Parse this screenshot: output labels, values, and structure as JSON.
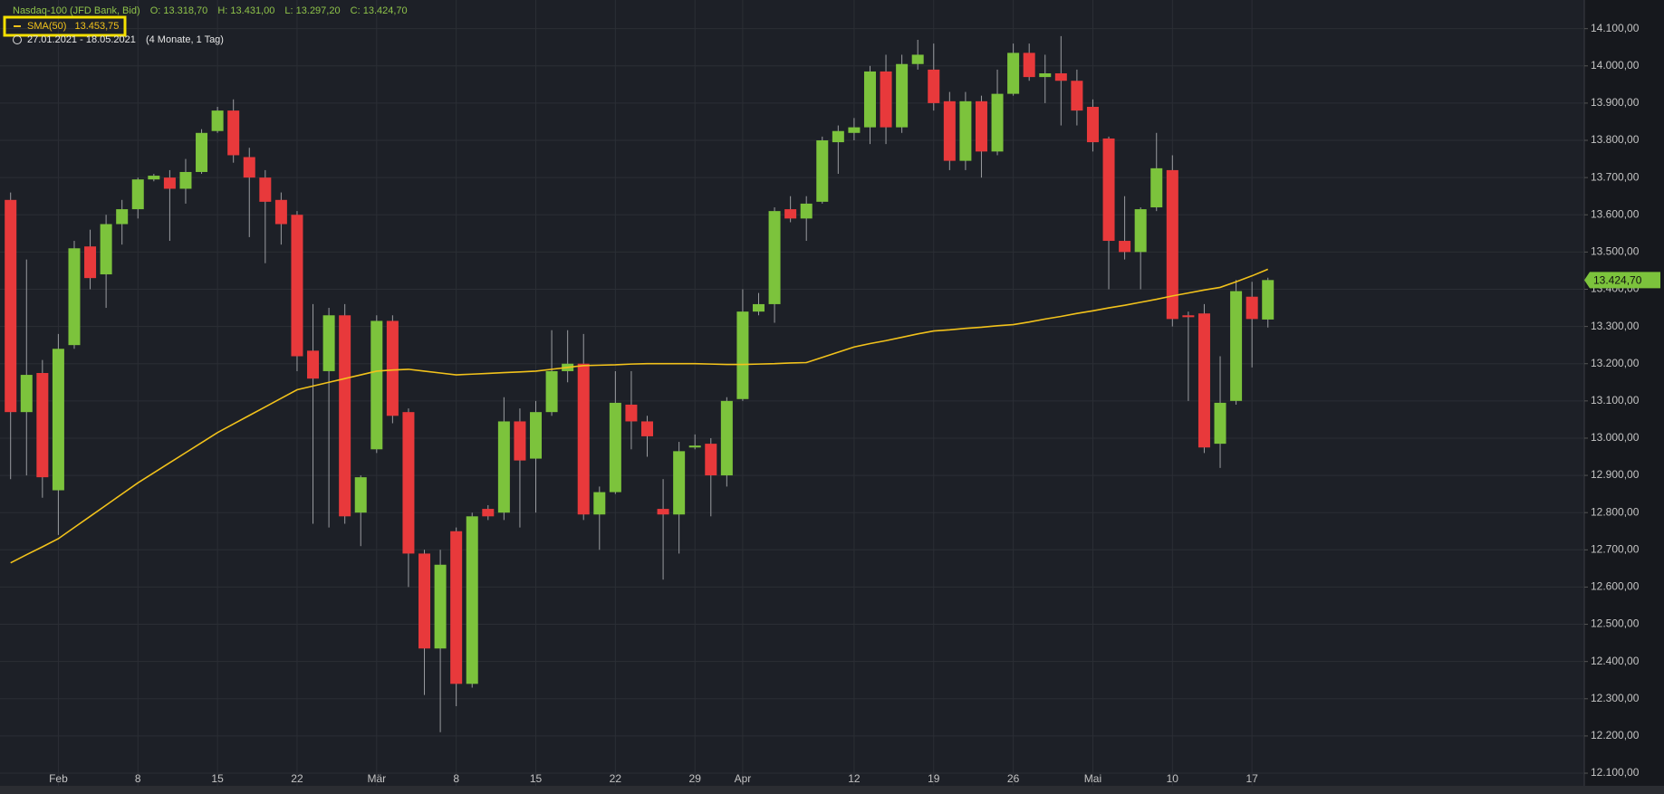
{
  "chart_data": {
    "type": "candlestick",
    "instrument": "Nasdaq-100 (JFD Bank, Bid)",
    "ohlc_labels": [
      "O: 13.318,70",
      "H: 13.431,00",
      "L: 13.297,20",
      "C: 13.424,70"
    ],
    "date_range": "27.01.2021 - 18.05.2021",
    "period": "(4 Monate, 1 Tag)",
    "last_price_label": "13.424,70",
    "up_color": "#7cc33c",
    "down_color": "#e8393b",
    "grid": true,
    "categories": [
      null,
      null,
      null,
      "Feb",
      null,
      null,
      null,
      null,
      "8",
      null,
      null,
      null,
      null,
      "15",
      null,
      null,
      null,
      null,
      "22",
      null,
      null,
      null,
      null,
      "Mär",
      null,
      null,
      null,
      null,
      "8",
      null,
      null,
      null,
      null,
      "15",
      null,
      null,
      null,
      null,
      "22",
      null,
      null,
      null,
      null,
      "29",
      null,
      null,
      "Apr",
      null,
      null,
      null,
      null,
      null,
      null,
      "12",
      null,
      null,
      null,
      null,
      "19",
      null,
      null,
      null,
      null,
      "26",
      null,
      null,
      null,
      null,
      "Mai",
      null,
      null,
      null,
      null,
      "10",
      null,
      null,
      null,
      null,
      "17",
      null
    ],
    "open": [
      13640,
      13070,
      13175,
      12860,
      13250,
      13515,
      13440,
      13575,
      13615,
      13695,
      13700,
      13670,
      13715,
      13825,
      13880,
      13755,
      13700,
      13640,
      13600,
      13235,
      13180,
      13330,
      12800,
      12970,
      13315,
      13070,
      12690,
      12435,
      12750,
      12340,
      12810,
      12800,
      13045,
      12945,
      13070,
      13180,
      13200,
      12795,
      12855,
      13090,
      13045,
      12810,
      12795,
      12975,
      12985,
      12900,
      13105,
      13340,
      13360,
      13615,
      13590,
      13635,
      13795,
      13820,
      13835,
      13985,
      13835,
      14005,
      13990,
      13905,
      13745,
      13905,
      13770,
      13925,
      14035,
      13970,
      13980,
      13960,
      13890,
      13805,
      13530,
      13500,
      13620,
      13720,
      13330,
      13335,
      12985,
      13100,
      13380,
      13318.7
    ],
    "high": [
      13660,
      13480,
      13210,
      13280,
      13530,
      13560,
      13600,
      13640,
      13700,
      13710,
      13720,
      13750,
      13830,
      13890,
      13910,
      13780,
      13720,
      13660,
      13610,
      13360,
      13350,
      13360,
      12900,
      13330,
      13330,
      13080,
      12700,
      12700,
      12760,
      12800,
      12820,
      13110,
      13080,
      13100,
      13290,
      13290,
      13280,
      12870,
      13180,
      13180,
      13060,
      12890,
      12990,
      13010,
      13000,
      13110,
      13400,
      13390,
      13620,
      13650,
      13650,
      13810,
      13840,
      13860,
      14000,
      14030,
      14030,
      14070,
      14060,
      13930,
      13930,
      13920,
      13990,
      14060,
      14060,
      14030,
      14080,
      13990,
      13910,
      13810,
      13650,
      13620,
      13820,
      13760,
      13340,
      13360,
      13220,
      13425,
      13420,
      13431
    ],
    "low": [
      12890,
      12900,
      12840,
      12740,
      13240,
      13400,
      13350,
      13520,
      13590,
      13690,
      13530,
      13630,
      13710,
      13820,
      13740,
      13540,
      13470,
      13520,
      13180,
      12770,
      12760,
      12770,
      12710,
      12960,
      13040,
      12600,
      12310,
      12210,
      12280,
      12330,
      12780,
      12780,
      12760,
      12800,
      13060,
      13150,
      12780,
      12700,
      12850,
      12970,
      12950,
      12620,
      12690,
      12970,
      12790,
      12870,
      13100,
      13330,
      13310,
      13580,
      13530,
      13630,
      13710,
      13800,
      13790,
      13790,
      13820,
      13990,
      13880,
      13720,
      13720,
      13700,
      13760,
      13920,
      13960,
      13900,
      13840,
      13840,
      13770,
      13400,
      13480,
      13400,
      13610,
      13300,
      13100,
      12960,
      12920,
      13090,
      13190,
      13297.2
    ],
    "close": [
      13070,
      13170,
      12895,
      13240,
      13510,
      13430,
      13575,
      13615,
      13695,
      13705,
      13670,
      13715,
      13820,
      13880,
      13760,
      13700,
      13635,
      13575,
      13220,
      13160,
      13330,
      12790,
      12895,
      13315,
      13060,
      12690,
      12435,
      12660,
      12340,
      12790,
      12790,
      13045,
      12940,
      13070,
      13180,
      13200,
      12795,
      12855,
      13095,
      13045,
      13005,
      12795,
      12965,
      12980,
      12900,
      13100,
      13340,
      13360,
      13610,
      13590,
      13630,
      13800,
      13825,
      13835,
      13985,
      13835,
      14005,
      14030,
      13900,
      13745,
      13905,
      13770,
      13925,
      14035,
      13970,
      13980,
      13960,
      13880,
      13795,
      13530,
      13500,
      13615,
      13725,
      13320,
      13325,
      12975,
      13095,
      13395,
      13320,
      13424.7
    ],
    "sma": {
      "name": "SMA(50)",
      "value_label": "13.453,75",
      "color": "#f2c21b",
      "values": [
        12665,
        12687,
        12708,
        12730,
        12760,
        12790,
        12820,
        12850,
        12880,
        12907,
        12934,
        12961,
        12988,
        13015,
        13038,
        13061,
        13084,
        13107,
        13130,
        13140,
        13150,
        13160,
        13170,
        13180,
        13183,
        13185,
        13180,
        13175,
        13170,
        13172,
        13174,
        13176,
        13178,
        13180,
        13185,
        13190,
        13195,
        13196,
        13197,
        13199,
        13200,
        13200,
        13200,
        13200,
        13199,
        13198,
        13198,
        13199,
        13200,
        13202,
        13203,
        13217,
        13231,
        13245,
        13254,
        13262,
        13271,
        13280,
        13288,
        13291,
        13295,
        13298,
        13302,
        13305,
        13312,
        13320,
        13327,
        13335,
        13342,
        13350,
        13357,
        13365,
        13373,
        13382,
        13390,
        13398,
        13405,
        13420,
        13436,
        13453.75
      ]
    },
    "ylim": [
      12066,
      14177
    ],
    "yticks": [
      {
        "value": 14100,
        "label": "14.100,00"
      },
      {
        "value": 14000,
        "label": "14.000,00"
      },
      {
        "value": 13900,
        "label": "13.900,00"
      },
      {
        "value": 13800,
        "label": "13.800,00"
      },
      {
        "value": 13700,
        "label": "13.700,00"
      },
      {
        "value": 13600,
        "label": "13.600,00"
      },
      {
        "value": 13500,
        "label": "13.500,00"
      },
      {
        "value": 13400,
        "label": "13.400,00"
      },
      {
        "value": 13300,
        "label": "13.300,00"
      },
      {
        "value": 13200,
        "label": "13.200,00"
      },
      {
        "value": 13100,
        "label": "13.100,00"
      },
      {
        "value": 13000,
        "label": "13.000,00"
      },
      {
        "value": 12900,
        "label": "12.900,00"
      },
      {
        "value": 12800,
        "label": "12.800,00"
      },
      {
        "value": 12700,
        "label": "12.700,00"
      },
      {
        "value": 12600,
        "label": "12.600,00"
      },
      {
        "value": 12500,
        "label": "12.500,00"
      },
      {
        "value": 12400,
        "label": "12.400,00"
      },
      {
        "value": 12300,
        "label": "12.300,00"
      },
      {
        "value": 12200,
        "label": "12.200,00"
      },
      {
        "value": 12100,
        "label": "12.100,00"
      }
    ]
  }
}
